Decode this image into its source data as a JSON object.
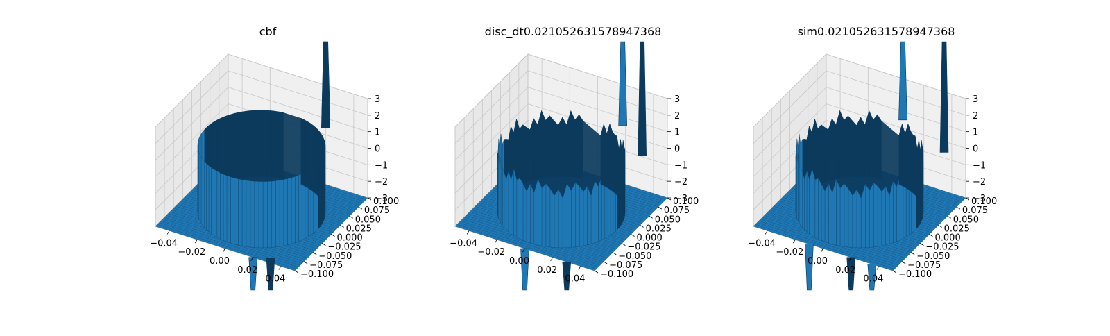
{
  "figure": {
    "background": "#ffffff"
  },
  "colors": {
    "surface": "#1f77b4",
    "surface_dark": "#0c3a5c",
    "pane_back": "#f0f0f0",
    "pane_side": "#e8e8e8",
    "pane_floor": "#f2f2f2",
    "grid": "#c8c8c8"
  },
  "chart_data": [
    {
      "type": "surface",
      "title": "cbf",
      "xlabel": "",
      "ylabel": "",
      "zlabel": "",
      "xlim": [
        -0.05,
        0.05
      ],
      "ylim": [
        -0.1,
        0.1
      ],
      "zlim": [
        -3,
        3
      ],
      "x_ticks": [
        "−0.04",
        "−0.02",
        "0.00",
        "0.02",
        "0.04"
      ],
      "y_ticks": [
        "−0.100",
        "−0.075",
        "−0.050",
        "−0.025",
        "0.000",
        "0.025",
        "0.050",
        "0.075",
        "0.100"
      ],
      "z_ticks": [
        "−3",
        "−2",
        "−1",
        "0",
        "1",
        "2",
        "3"
      ],
      "grid": true,
      "features": {
        "floor_value": -3,
        "ring_top": 1,
        "spikes": [
          {
            "x": 0.02,
            "y": 0.1,
            "z": 10
          },
          {
            "x": 0.025,
            "y": 0.08,
            "z": 10
          },
          {
            "x": 0.02,
            "y": -0.1,
            "z": -10
          },
          {
            "x": 0.03,
            "y": -0.09,
            "z": -10
          }
        ],
        "jagged": false
      }
    },
    {
      "type": "surface",
      "title": "disc_dt0.021052631578947368",
      "xlabel": "",
      "ylabel": "",
      "zlabel": "",
      "xlim": [
        -0.05,
        0.05
      ],
      "ylim": [
        -0.1,
        0.1
      ],
      "zlim": [
        -3,
        3
      ],
      "x_ticks": [
        "−0.04",
        "−0.02",
        "0.00",
        "0.02",
        "0.04"
      ],
      "y_ticks": [
        "−0.100",
        "−0.075",
        "−0.050",
        "−0.025",
        "0.000",
        "0.025",
        "0.050",
        "0.075",
        "0.100"
      ],
      "z_ticks": [
        "−3",
        "−2",
        "−1",
        "0",
        "1",
        "2",
        "3"
      ],
      "grid": true,
      "features": {
        "floor_value": -3,
        "ring_top": 0.5,
        "spikes": [
          {
            "x": 0.018,
            "y": 0.1,
            "z": 10
          },
          {
            "x": 0.045,
            "y": 0.05,
            "z": 10
          },
          {
            "x": 0.0,
            "y": -0.1,
            "z": -10
          },
          {
            "x": 0.03,
            "y": -0.1,
            "z": -10
          }
        ],
        "jagged": true
      }
    },
    {
      "type": "surface",
      "title": "sim0.021052631578947368",
      "xlabel": "",
      "ylabel": "",
      "zlabel": "",
      "xlim": [
        -0.05,
        0.05
      ],
      "ylim": [
        -0.1,
        0.1
      ],
      "zlim": [
        -3,
        3
      ],
      "x_ticks": [
        "−0.04",
        "−0.02",
        "0.00",
        "0.02",
        "0.04"
      ],
      "y_ticks": [
        "−0.100",
        "−0.075",
        "−0.050",
        "−0.025",
        "0.000",
        "0.025",
        "0.050",
        "0.075",
        "0.100"
      ],
      "z_ticks": [
        "−3",
        "−2",
        "−1",
        "0",
        "1",
        "2",
        "3"
      ],
      "grid": true,
      "features": {
        "floor_value": -3,
        "ring_top": 0.5,
        "spikes": [
          {
            "x": 0.005,
            "y": 0.1,
            "z": 10
          },
          {
            "x": 0.045,
            "y": 0.06,
            "z": 10
          },
          {
            "x": -0.01,
            "y": -0.1,
            "z": -10
          },
          {
            "x": 0.02,
            "y": -0.1,
            "z": -10
          },
          {
            "x": 0.035,
            "y": -0.1,
            "z": -10
          }
        ],
        "jagged": true
      }
    }
  ]
}
